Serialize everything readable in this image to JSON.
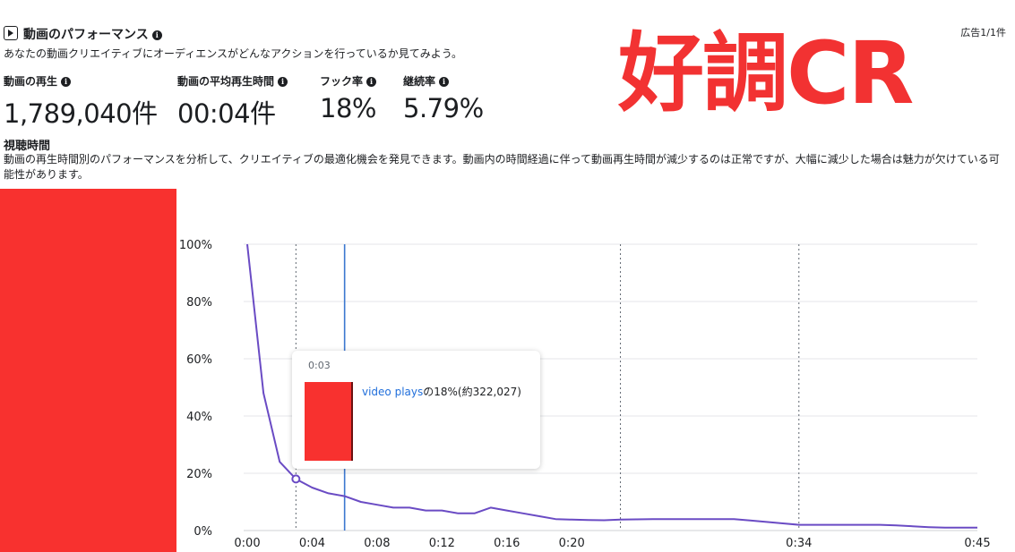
{
  "header": {
    "title": "動画のパフォーマンス",
    "subtitle": "あなたの動画クリエイティブにオーディエンスがどんなアクションを行っているか見てみよう。",
    "ad_count": "広告1/1件"
  },
  "metrics": [
    {
      "label": "動画の再生",
      "value": "1,789,040件"
    },
    {
      "label": "動画の平均再生時間",
      "value": "00:04件"
    },
    {
      "label": "フック率",
      "value": "18%"
    },
    {
      "label": "継続率",
      "value": "5.79%"
    }
  ],
  "overlay_text": "好調CR",
  "section": {
    "title": "視聴時間",
    "description": "動画の再生時間別のパフォーマンスを分析して、クリエイティブの最適化機会を発見できます。動画内の時間経過に伴って動画再生時間が減少するのは正常ですが、大幅に減少した場合は魅力が欠けている可能性があります。"
  },
  "tooltip": {
    "time": "0:03",
    "series_label": "video plays",
    "value_text": "の18%(約322,027)"
  },
  "colors": {
    "line": "#6a4bc4",
    "cursor": "#3c78d0",
    "overlay": "#f23232",
    "redaction": "#f8312f"
  },
  "chart_data": {
    "type": "line",
    "x": [
      0,
      1,
      2,
      3,
      4,
      5,
      6,
      7,
      8,
      9,
      10,
      11,
      12,
      13,
      14,
      15,
      16,
      17,
      18,
      19,
      20,
      21,
      22,
      23,
      24,
      25,
      26,
      27,
      28,
      29,
      30,
      31,
      32,
      33,
      34,
      35,
      36,
      37,
      38,
      39,
      40,
      41,
      42,
      43,
      44,
      45
    ],
    "series": [
      {
        "values": [
          100,
          48,
          24,
          18,
          15,
          13,
          12,
          10,
          9,
          8,
          8,
          7,
          7,
          6,
          6,
          8,
          7,
          6,
          5,
          4,
          3.8,
          3.7,
          3.6,
          3.8,
          3.9,
          4,
          4,
          4,
          4,
          4,
          4,
          3.5,
          3,
          2.5,
          2,
          2,
          2,
          2,
          2,
          2,
          1.8,
          1.5,
          1.2,
          1,
          1,
          1
        ]
      }
    ],
    "xticks": [
      {
        "value": 0,
        "label": "0:00"
      },
      {
        "value": 4,
        "label": "0:04"
      },
      {
        "value": 8,
        "label": "0:08"
      },
      {
        "value": 12,
        "label": "0:12"
      },
      {
        "value": 16,
        "label": "0:16"
      },
      {
        "value": 20,
        "label": "0:20"
      },
      {
        "value": 34,
        "label": "0:34"
      },
      {
        "value": 45,
        "label": "0:45"
      }
    ],
    "yticks": [
      {
        "value": 0,
        "label": "0%"
      },
      {
        "value": 20,
        "label": "20%"
      },
      {
        "value": 40,
        "label": "40%"
      },
      {
        "value": 60,
        "label": "60%"
      },
      {
        "value": 80,
        "label": "80%"
      },
      {
        "value": 100,
        "label": "100%"
      }
    ],
    "dotted_x": [
      3,
      23,
      34
    ],
    "cursor_x": 6,
    "highlight": {
      "x": 3,
      "y": 18
    },
    "xlim": [
      0,
      45
    ],
    "ylim": [
      0,
      100
    ],
    "grid": true
  }
}
